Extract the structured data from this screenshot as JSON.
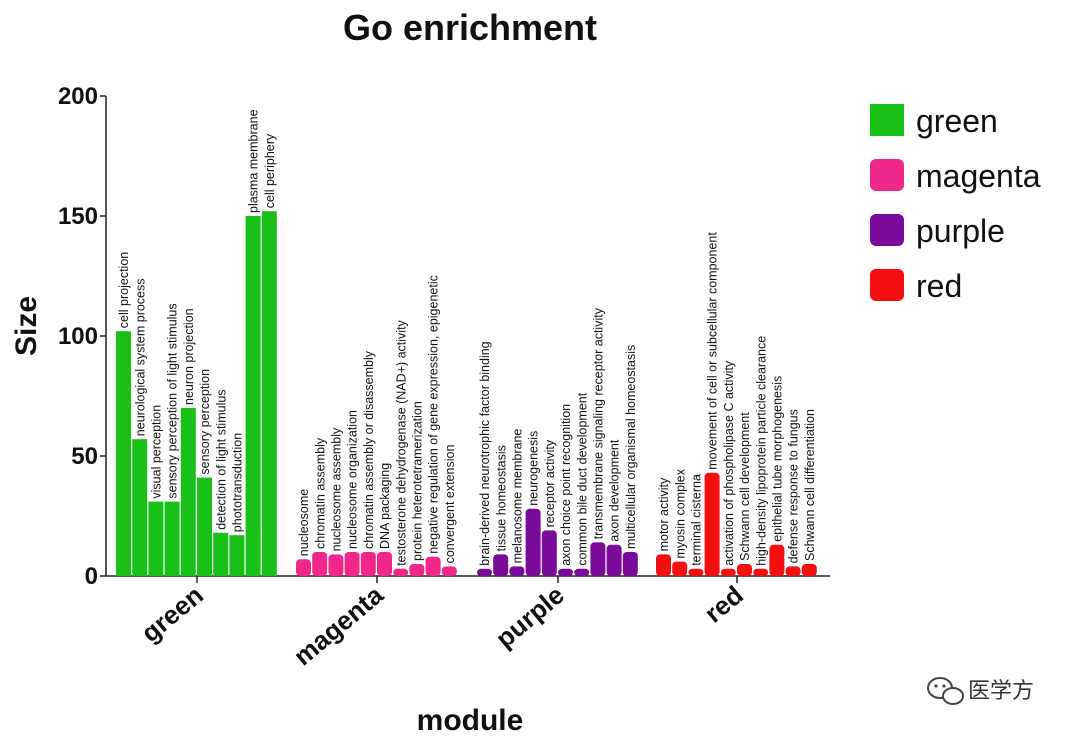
{
  "chart_data": {
    "type": "bar",
    "title": "Go enrichment",
    "xlabel": "module",
    "ylabel": "Size",
    "ylim": [
      0,
      200
    ],
    "yticks": [
      0,
      50,
      100,
      150,
      200
    ],
    "grid": false,
    "legend_placement": "top-right",
    "groups": [
      {
        "name": "green",
        "color": "#18c018",
        "bars": [
          {
            "label": "cell projection",
            "value": 102
          },
          {
            "label": "neurological system process",
            "value": 57
          },
          {
            "label": "visual perception",
            "value": 31
          },
          {
            "label": "sensory perception of light stimulus",
            "value": 31
          },
          {
            "label": "neuron projection",
            "value": 70
          },
          {
            "label": "sensory perception",
            "value": 41
          },
          {
            "label": "detection of light stimulus",
            "value": 18
          },
          {
            "label": "phototransduction",
            "value": 17
          },
          {
            "label": "plasma membrane",
            "value": 150
          },
          {
            "label": "cell periphery",
            "value": 152
          }
        ]
      },
      {
        "name": "magenta",
        "color": "#f0288c",
        "bars": [
          {
            "label": "nucleosome",
            "value": 7
          },
          {
            "label": "chromatin assembly",
            "value": 10
          },
          {
            "label": "nucleosome assembly",
            "value": 9
          },
          {
            "label": "nucleosome organization",
            "value": 10
          },
          {
            "label": "chromatin assembly or disassembly",
            "value": 10
          },
          {
            "label": "DNA packaging",
            "value": 10
          },
          {
            "label": "testosterone dehydrogenase (NAD+) activity",
            "value": 3
          },
          {
            "label": "protein heterotetramerization",
            "value": 5
          },
          {
            "label": "negative regulation of gene expression, epigenetic",
            "value": 8
          },
          {
            "label": "convergent extension",
            "value": 4
          }
        ]
      },
      {
        "name": "purple",
        "color": "#7a0a9a",
        "bars": [
          {
            "label": "brain-derived neurotrophic factor binding",
            "value": 3
          },
          {
            "label": "tissue homeostasis",
            "value": 9
          },
          {
            "label": "melanosome membrane",
            "value": 4
          },
          {
            "label": "neurogenesis",
            "value": 28
          },
          {
            "label": "receptor activity",
            "value": 19
          },
          {
            "label": "axon choice point recognition",
            "value": 3
          },
          {
            "label": "common bile duct development",
            "value": 3
          },
          {
            "label": "transmembrane signaling receptor activity",
            "value": 14
          },
          {
            "label": "axon development",
            "value": 13
          },
          {
            "label": "multicellular organismal homeostasis",
            "value": 10
          }
        ]
      },
      {
        "name": "red",
        "color": "#f41010",
        "bars": [
          {
            "label": "motor activity",
            "value": 9
          },
          {
            "label": "myosin complex",
            "value": 6
          },
          {
            "label": "terminal cisterna",
            "value": 3
          },
          {
            "label": "movement of cell or subcellular component",
            "value": 43
          },
          {
            "label": "activation of phospholipase C activity",
            "value": 3
          },
          {
            "label": "Schwann cell development",
            "value": 5
          },
          {
            "label": "high-density lipoprotein particle clearance",
            "value": 3
          },
          {
            "label": "epithelial tube morphogenesis",
            "value": 13
          },
          {
            "label": "defense response to fungus",
            "value": 4
          },
          {
            "label": "Schwann cell differentiation",
            "value": 5
          }
        ]
      }
    ],
    "legend": [
      "green",
      "magenta",
      "purple",
      "red"
    ]
  },
  "watermark": {
    "text": "医学方",
    "icon": "wechat-icon"
  }
}
